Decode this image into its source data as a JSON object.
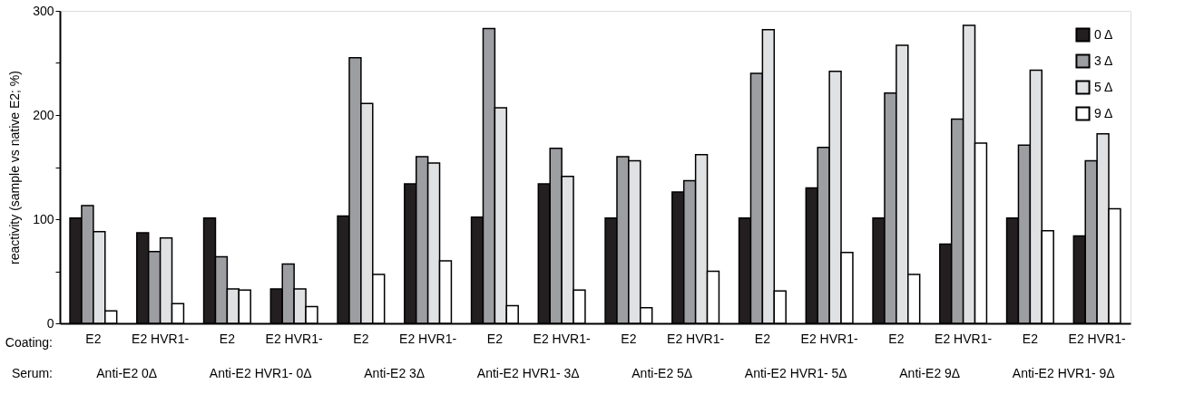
{
  "chart_data": {
    "type": "bar",
    "ylabel": "reactivity (sample vs native E2; %)",
    "categories": [
      "E2",
      "E2 HVR1-",
      "E2",
      "E2 HVR1-",
      "E2",
      "E2 HVR1-",
      "E2",
      "E2 HVR1-",
      "E2",
      "E2 HVR1-",
      "E2",
      "E2 HVR1-",
      "E2",
      "E2 HVR1-",
      "E2",
      "E2 HVR1-"
    ],
    "series": [
      {
        "name": "0 Δ",
        "color": "#231f20",
        "values": [
          101,
          87,
          101,
          33,
          103,
          134,
          102,
          134,
          101,
          126,
          101,
          130,
          101,
          76,
          101,
          84
        ]
      },
      {
        "name": "3 Δ",
        "color": "#9d9ea2",
        "values": [
          113,
          69,
          64,
          57,
          255,
          160,
          283,
          168,
          160,
          137,
          240,
          169,
          221,
          196,
          171,
          156
        ]
      },
      {
        "name": "5 Δ",
        "color": "#e0e1e3",
        "values": [
          88,
          82,
          33,
          33,
          211,
          154,
          207,
          141,
          156,
          162,
          282,
          242,
          267,
          286,
          243,
          182
        ]
      },
      {
        "name": " 9 Δ",
        "color": "#ffffff",
        "values": [
          12,
          19,
          32,
          16,
          47,
          60,
          17,
          32,
          15,
          50,
          31,
          68,
          47,
          173,
          89,
          110
        ]
      }
    ],
    "ylim": [
      0,
      300
    ],
    "yticks": [
      0,
      {
        "value": 50,
        "label": null
      },
      100,
      {
        "value": 150,
        "label": null
      },
      200,
      {
        "value": 250,
        "label": null
      },
      300
    ],
    "grid": false,
    "legend": "top right",
    "annotations": [
      "Coating:",
      "Serum:",
      "Anti-E2 0Δ",
      "Anti-E2 HVR1- 0Δ",
      "Anti-E2 3Δ",
      "Anti-E2 HVR1- 3Δ",
      "Anti-E2 5Δ",
      "Anti-E2 HVR1- 5Δ",
      "Anti-E2  9Δ",
      "Anti-E2 HVR1-  9Δ"
    ]
  }
}
